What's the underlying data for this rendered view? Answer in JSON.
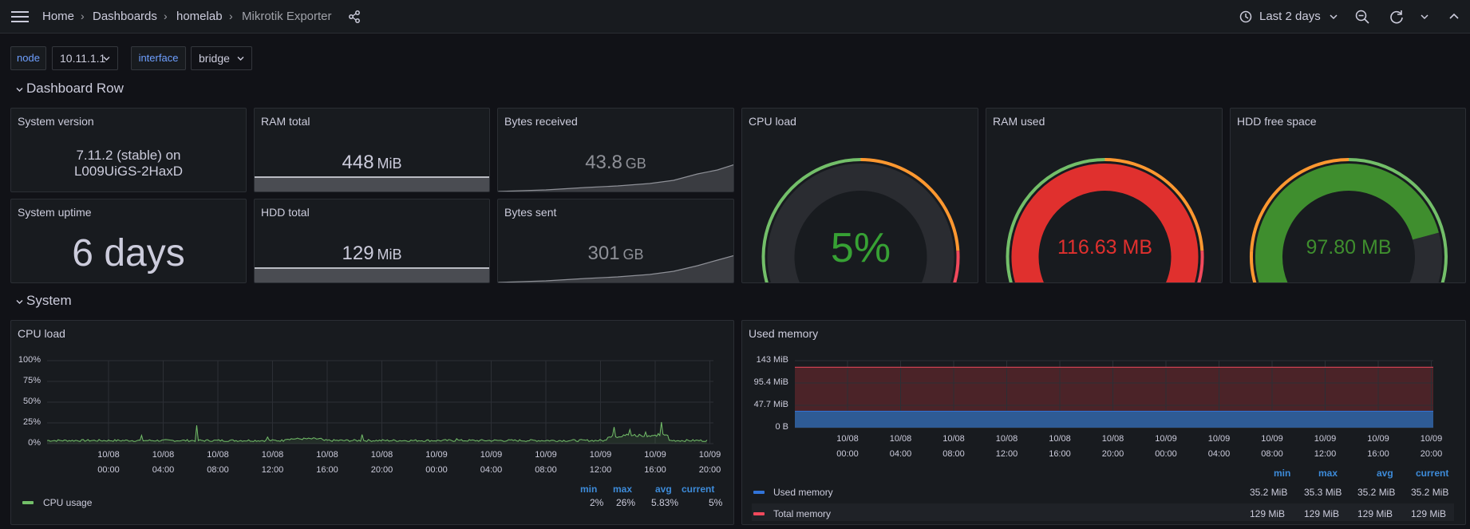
{
  "breadcrumb": {
    "home": "Home",
    "dashboards": "Dashboards",
    "folder": "homelab",
    "current": "Mikrotik Exporter"
  },
  "toolbar": {
    "time_range": "Last 2 days"
  },
  "variables": [
    {
      "label": "node",
      "value": "10.11.1.1"
    },
    {
      "label": "interface",
      "value": "bridge"
    }
  ],
  "rows": {
    "dashboard": "Dashboard Row",
    "system": "System"
  },
  "stats": {
    "system_version": {
      "title": "System version",
      "line1": "7.11.2 (stable) on",
      "line2": "L009UiGS-2HaxD"
    },
    "system_uptime": {
      "title": "System uptime",
      "value": "6 days"
    },
    "ram_total": {
      "title": "RAM total",
      "value": "448",
      "unit": "MiB"
    },
    "hdd_total": {
      "title": "HDD total",
      "value": "129",
      "unit": "MiB"
    },
    "bytes_received": {
      "title": "Bytes received",
      "value": "43.8",
      "unit": "GB"
    },
    "bytes_sent": {
      "title": "Bytes sent",
      "value": "301",
      "unit": "GB"
    }
  },
  "gauges": {
    "cpu_load": {
      "title": "CPU load",
      "value": "5%",
      "fraction": 0.05,
      "color": "#37a134"
    },
    "ram_used": {
      "title": "RAM used",
      "value": "116.63 MB",
      "fraction": 0.91,
      "color": "#e0302e"
    },
    "hdd_free": {
      "title": "HDD free space",
      "value": "97.80 MB",
      "fraction": 0.76,
      "color": "#3f8e2e"
    }
  },
  "colors": {
    "green": "#73bf69",
    "red": "#f2495c",
    "blue": "#3274d9",
    "orange": "#ff9830"
  },
  "cpu_chart": {
    "title": "CPU load",
    "y_ticks": [
      "100%",
      "75%",
      "50%",
      "25%",
      "0%"
    ],
    "x_ticks": [
      [
        "10/08",
        "00:00"
      ],
      [
        "10/08",
        "04:00"
      ],
      [
        "10/08",
        "08:00"
      ],
      [
        "10/08",
        "12:00"
      ],
      [
        "10/08",
        "16:00"
      ],
      [
        "10/08",
        "20:00"
      ],
      [
        "10/09",
        "00:00"
      ],
      [
        "10/09",
        "04:00"
      ],
      [
        "10/09",
        "08:00"
      ],
      [
        "10/09",
        "12:00"
      ],
      [
        "10/09",
        "16:00"
      ],
      [
        "10/09",
        "20:00"
      ]
    ],
    "legend_headers": [
      "min",
      "max",
      "avg",
      "current"
    ],
    "series": [
      {
        "name": "CPU usage",
        "min": "2%",
        "max": "26%",
        "avg": "5.83%",
        "current": "5%"
      }
    ]
  },
  "memory_chart": {
    "title": "Used memory",
    "y_ticks": [
      "143 MiB",
      "95.4 MiB",
      "47.7 MiB",
      "0 B"
    ],
    "x_ticks": [
      [
        "10/08",
        "00:00"
      ],
      [
        "10/08",
        "04:00"
      ],
      [
        "10/08",
        "08:00"
      ],
      [
        "10/08",
        "12:00"
      ],
      [
        "10/08",
        "16:00"
      ],
      [
        "10/08",
        "20:00"
      ],
      [
        "10/09",
        "00:00"
      ],
      [
        "10/09",
        "04:00"
      ],
      [
        "10/09",
        "08:00"
      ],
      [
        "10/09",
        "12:00"
      ],
      [
        "10/09",
        "16:00"
      ],
      [
        "10/09",
        "20:00"
      ]
    ],
    "legend_headers": [
      "min",
      "max",
      "avg",
      "current"
    ],
    "series": [
      {
        "name": "Used memory",
        "min": "35.2 MiB",
        "max": "35.3 MiB",
        "avg": "35.2 MiB",
        "current": "35.2 MiB"
      },
      {
        "name": "Total memory",
        "min": "129 MiB",
        "max": "129 MiB",
        "avg": "129 MiB",
        "current": "129 MiB"
      }
    ]
  }
}
